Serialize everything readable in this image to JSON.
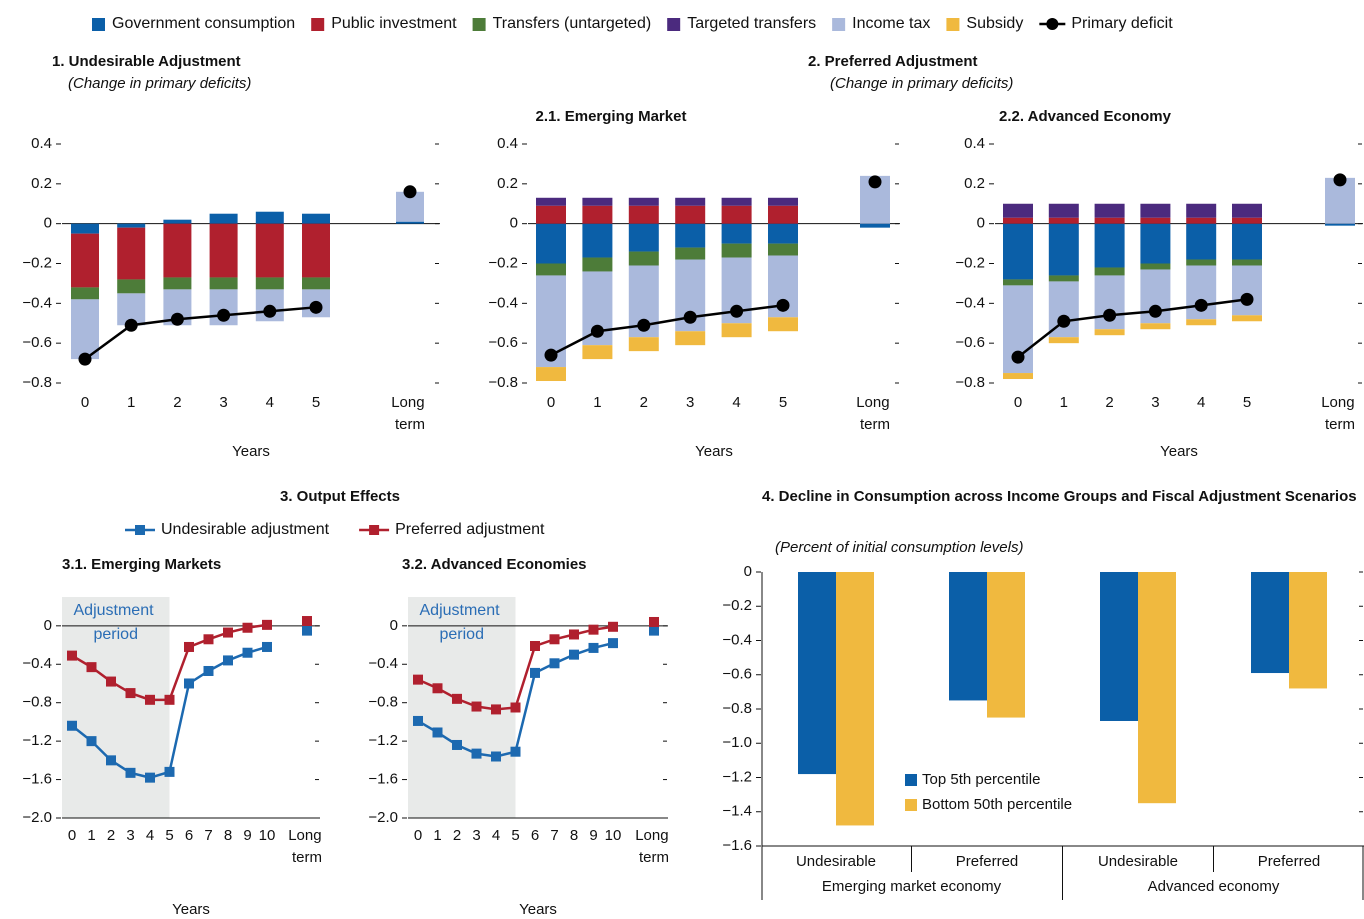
{
  "chart_data": [
    {
      "type": "bar",
      "stacked": true,
      "title": "1. Undesirable Adjustment",
      "subtitle": "(Change in primary deficits)",
      "categories": [
        "0",
        "1",
        "2",
        "3",
        "4",
        "5",
        "Long term"
      ],
      "xlabel": "Years",
      "ylim": [
        -0.8,
        0.4
      ],
      "yticks": [
        0.4,
        0.2,
        0,
        {
          "value": -0.2,
          "label": "−0.2"
        },
        {
          "value": -0.4,
          "label": "−0.4"
        },
        {
          "value": -0.6,
          "label": "−0.6"
        },
        {
          "value": -0.8,
          "label": "−0.8"
        }
      ],
      "series": [
        {
          "name": "Government consumption",
          "color": "#0b5fa8",
          "values": [
            -0.05,
            -0.02,
            0.02,
            0.05,
            0.06,
            0.05,
            0.01
          ]
        },
        {
          "name": "Public investment",
          "color": "#b0202e",
          "values": [
            -0.27,
            -0.26,
            -0.27,
            -0.27,
            -0.27,
            -0.27,
            0
          ]
        },
        {
          "name": "Transfers (untargeted)",
          "color": "#4d7c39",
          "values": [
            -0.06,
            -0.07,
            -0.06,
            -0.06,
            -0.06,
            -0.06,
            0
          ]
        },
        {
          "name": "Targeted transfers",
          "color": "#4b2a7e",
          "values": [
            0,
            0,
            0,
            0,
            0,
            0,
            0
          ]
        },
        {
          "name": "Income tax",
          "color": "#aab9dc",
          "values": [
            -0.3,
            -0.16,
            -0.18,
            -0.18,
            -0.16,
            -0.14,
            0.15
          ]
        },
        {
          "name": "Subsidy",
          "color": "#f0b93f",
          "values": [
            0,
            0,
            0,
            0,
            0,
            0,
            0
          ]
        },
        {
          "name": "Primary deficit",
          "type": "line",
          "marker": "circle",
          "color": "#000000",
          "values": [
            -0.68,
            -0.51,
            -0.48,
            -0.46,
            -0.44,
            -0.42,
            0.16
          ]
        }
      ]
    },
    {
      "type": "bar",
      "stacked": true,
      "group_title": "2. Preferred Adjustment",
      "group_subtitle": "(Change in primary deficits)",
      "title": "2.1. Emerging Market",
      "categories": [
        "0",
        "1",
        "2",
        "3",
        "4",
        "5",
        "Long term"
      ],
      "xlabel": "Years",
      "ylim": [
        -0.8,
        0.4
      ],
      "yticks": [
        0.4,
        0.2,
        0,
        {
          "value": -0.2,
          "label": "−0.2"
        },
        {
          "value": -0.4,
          "label": "−0.4"
        },
        {
          "value": -0.6,
          "label": "−0.6"
        },
        {
          "value": -0.8,
          "label": "−0.8"
        }
      ],
      "series": [
        {
          "name": "Government consumption",
          "color": "#0b5fa8",
          "values": [
            -0.2,
            -0.17,
            -0.14,
            -0.12,
            -0.1,
            -0.1,
            -0.02
          ]
        },
        {
          "name": "Public investment",
          "color": "#b0202e",
          "values": [
            0.09,
            0.09,
            0.09,
            0.09,
            0.09,
            0.09,
            0
          ]
        },
        {
          "name": "Transfers (untargeted)",
          "color": "#4d7c39",
          "values": [
            -0.06,
            -0.07,
            -0.07,
            -0.06,
            -0.07,
            -0.06,
            0
          ]
        },
        {
          "name": "Targeted transfers",
          "color": "#4b2a7e",
          "values": [
            0.04,
            0.04,
            0.04,
            0.04,
            0.04,
            0.04,
            0
          ]
        },
        {
          "name": "Income tax",
          "color": "#aab9dc",
          "values": [
            -0.46,
            -0.37,
            -0.36,
            -0.36,
            -0.33,
            -0.31,
            0.24
          ]
        },
        {
          "name": "Subsidy",
          "color": "#f0b93f",
          "values": [
            -0.07,
            -0.07,
            -0.07,
            -0.07,
            -0.07,
            -0.07,
            0
          ]
        },
        {
          "name": "Primary deficit",
          "type": "line",
          "marker": "circle",
          "color": "#000000",
          "values": [
            -0.66,
            -0.54,
            -0.51,
            -0.47,
            -0.44,
            -0.41,
            0.21
          ]
        }
      ]
    },
    {
      "type": "bar",
      "stacked": true,
      "title": "2.2. Advanced Economy",
      "categories": [
        "0",
        "1",
        "2",
        "3",
        "4",
        "5",
        "Long term"
      ],
      "xlabel": "Years",
      "ylim": [
        -0.8,
        0.4
      ],
      "yticks": [
        0.4,
        0.2,
        0,
        {
          "value": -0.2,
          "label": "−0.2"
        },
        {
          "value": -0.4,
          "label": "−0.4"
        },
        {
          "value": -0.6,
          "label": "−0.6"
        },
        {
          "value": -0.8,
          "label": "−0.8"
        }
      ],
      "series": [
        {
          "name": "Government consumption",
          "color": "#0b5fa8",
          "values": [
            -0.28,
            -0.26,
            -0.22,
            -0.2,
            -0.18,
            -0.18,
            -0.01
          ]
        },
        {
          "name": "Public investment",
          "color": "#b0202e",
          "values": [
            0.03,
            0.03,
            0.03,
            0.03,
            0.03,
            0.03,
            0
          ]
        },
        {
          "name": "Transfers (untargeted)",
          "color": "#4d7c39",
          "values": [
            -0.03,
            -0.03,
            -0.04,
            -0.03,
            -0.03,
            -0.03,
            0
          ]
        },
        {
          "name": "Targeted transfers",
          "color": "#4b2a7e",
          "values": [
            0.07,
            0.07,
            0.07,
            0.07,
            0.07,
            0.07,
            0
          ]
        },
        {
          "name": "Income tax",
          "color": "#aab9dc",
          "values": [
            -0.44,
            -0.28,
            -0.27,
            -0.27,
            -0.27,
            -0.25,
            0.23
          ]
        },
        {
          "name": "Subsidy",
          "color": "#f0b93f",
          "values": [
            -0.03,
            -0.03,
            -0.03,
            -0.03,
            -0.03,
            -0.03,
            0
          ]
        },
        {
          "name": "Primary deficit",
          "type": "line",
          "marker": "circle",
          "color": "#000000",
          "values": [
            -0.67,
            -0.49,
            -0.46,
            -0.44,
            -0.41,
            -0.38,
            0.22
          ]
        }
      ]
    },
    {
      "type": "line",
      "group_title": "3. Output Effects",
      "title": "3.1. Emerging Markets",
      "annotation": "Adjustment period",
      "categories": [
        "0",
        "1",
        "2",
        "3",
        "4",
        "5",
        "6",
        "7",
        "8",
        "9",
        "10",
        "Long term"
      ],
      "xlabel": "Years",
      "ylim": [
        -2.0,
        0.3
      ],
      "yticks": [
        0,
        {
          "value": -0.4,
          "label": "−0.4"
        },
        {
          "value": -0.8,
          "label": "−0.8"
        },
        {
          "value": -1.2,
          "label": "−1.2"
        },
        {
          "value": -1.6,
          "label": "−1.6"
        },
        {
          "value": -2.0,
          "label": "−2.0"
        }
      ],
      "series": [
        {
          "name": "Undesirable adjustment",
          "marker": "square",
          "color": "#1c69b0",
          "values": [
            -1.04,
            -1.2,
            -1.4,
            -1.53,
            -1.58,
            -1.52,
            -0.6,
            -0.47,
            -0.36,
            -0.28,
            -0.22,
            -0.05
          ]
        },
        {
          "name": "Preferred adjustment",
          "marker": "square",
          "color": "#b0202e",
          "values": [
            -0.31,
            -0.43,
            -0.58,
            -0.7,
            -0.77,
            -0.77,
            -0.22,
            -0.14,
            -0.07,
            -0.02,
            0.01,
            0.05
          ]
        }
      ]
    },
    {
      "type": "line",
      "title": "3.2. Advanced Economies",
      "annotation": "Adjustment period",
      "categories": [
        "0",
        "1",
        "2",
        "3",
        "4",
        "5",
        "6",
        "7",
        "8",
        "9",
        "10",
        "Long term"
      ],
      "xlabel": "Years",
      "ylim": [
        -2.0,
        0.3
      ],
      "yticks": [
        0,
        {
          "value": -0.4,
          "label": "−0.4"
        },
        {
          "value": -0.8,
          "label": "−0.8"
        },
        {
          "value": -1.2,
          "label": "−1.2"
        },
        {
          "value": -1.6,
          "label": "−1.6"
        },
        {
          "value": -2.0,
          "label": "−2.0"
        }
      ],
      "series": [
        {
          "name": "Undesirable adjustment",
          "marker": "square",
          "color": "#1c69b0",
          "values": [
            -0.99,
            -1.11,
            -1.24,
            -1.33,
            -1.36,
            -1.31,
            -0.49,
            -0.39,
            -0.3,
            -0.23,
            -0.18,
            -0.05
          ]
        },
        {
          "name": "Preferred adjustment",
          "marker": "square",
          "color": "#b0202e",
          "values": [
            -0.56,
            -0.65,
            -0.76,
            -0.84,
            -0.87,
            -0.85,
            -0.21,
            -0.14,
            -0.09,
            -0.04,
            -0.01,
            0.04
          ]
        }
      ]
    },
    {
      "type": "bar",
      "stacked": false,
      "title": "4. Decline in Consumption across Income Groups and Fiscal Adjustment Scenarios",
      "subtitle": "(Percent of initial consumption levels)",
      "categories": [
        "Undesirable",
        "Preferred",
        "Undesirable",
        "Preferred"
      ],
      "groups": [
        "Emerging market economy",
        "Advanced economy"
      ],
      "ylim": [
        -1.6,
        0
      ],
      "yticks": [
        0,
        {
          "value": -0.2,
          "label": "−0.2"
        },
        {
          "value": -0.4,
          "label": "−0.4"
        },
        {
          "value": -0.6,
          "label": "−0.6"
        },
        {
          "value": -0.8,
          "label": "−0.8"
        },
        {
          "value": -1.0,
          "label": "−1.0"
        },
        {
          "value": -1.2,
          "label": "−1.2"
        },
        {
          "value": -1.4,
          "label": "−1.4"
        },
        {
          "value": -1.6,
          "label": "−1.6"
        }
      ],
      "series": [
        {
          "name": "Top 5th percentile",
          "color": "#0b5fa8",
          "values": [
            -1.18,
            -0.75,
            -0.87,
            -0.59
          ]
        },
        {
          "name": "Bottom 50th percentile",
          "color": "#f0b93f",
          "values": [
            -1.48,
            -0.85,
            -1.35,
            -0.68
          ]
        }
      ]
    }
  ]
}
